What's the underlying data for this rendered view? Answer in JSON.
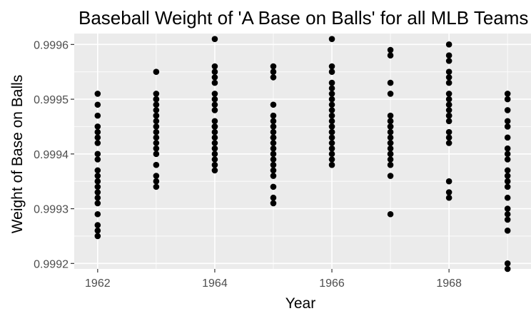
{
  "chart_data": {
    "type": "scatter",
    "title": "Baseball Weight of 'A Base on Balls' for all MLB Teams",
    "xlabel": "Year",
    "ylabel": "Weight of Base on Balls",
    "xlim": [
      1961.6,
      1969.4
    ],
    "ylim": [
      0.99919,
      0.99962
    ],
    "x_ticks": [
      1962,
      1964,
      1966,
      1968
    ],
    "x_tick_labels": [
      "1962",
      "1964",
      "1966",
      "1968"
    ],
    "y_ticks": [
      0.9992,
      0.9993,
      0.9994,
      0.9995,
      0.9996
    ],
    "y_tick_labels": [
      "0.9992",
      "0.9993",
      "0.9994",
      "0.9995",
      "0.9996"
    ],
    "grid": true,
    "legend": "none",
    "panel_color": "#ebebeb",
    "grid_color": "#ffffff",
    "point_color": "#000000",
    "series": [
      {
        "x": [
          1962,
          1962,
          1962,
          1962,
          1962,
          1962,
          1962,
          1962,
          1962,
          1962,
          1962,
          1962,
          1962,
          1962,
          1962,
          1962,
          1962,
          1962,
          1962,
          1962
        ],
        "y": [
          0.99951,
          0.99947,
          0.99945,
          0.99944,
          0.99943,
          0.99942,
          0.9994,
          0.99939,
          0.99937,
          0.99936,
          0.99935,
          0.99934,
          0.99933,
          0.99932,
          0.99931,
          0.99929,
          0.99927,
          0.99925,
          0.99926,
          0.99949
        ]
      },
      {
        "x": [
          1963,
          1963,
          1963,
          1963,
          1963,
          1963,
          1963,
          1963,
          1963,
          1963,
          1963,
          1963,
          1963,
          1963,
          1963,
          1963,
          1963,
          1963,
          1963,
          1963
        ],
        "y": [
          0.99955,
          0.99951,
          0.9995,
          0.99949,
          0.99948,
          0.99947,
          0.99946,
          0.99945,
          0.99944,
          0.99943,
          0.99942,
          0.99941,
          0.9994,
          0.99938,
          0.99936,
          0.99935,
          0.99934,
          0.99949,
          0.9995,
          0.99947
        ]
      },
      {
        "x": [
          1964,
          1964,
          1964,
          1964,
          1964,
          1964,
          1964,
          1964,
          1964,
          1964,
          1964,
          1964,
          1964,
          1964,
          1964,
          1964,
          1964,
          1964,
          1964,
          1964
        ],
        "y": [
          0.99961,
          0.99956,
          0.99955,
          0.99954,
          0.99953,
          0.99951,
          0.9995,
          0.99948,
          0.99946,
          0.99945,
          0.99944,
          0.99943,
          0.99942,
          0.99941,
          0.9994,
          0.99939,
          0.99938,
          0.99937,
          0.99949,
          0.99945
        ]
      },
      {
        "x": [
          1965,
          1965,
          1965,
          1965,
          1965,
          1965,
          1965,
          1965,
          1965,
          1965,
          1965,
          1965,
          1965,
          1965,
          1965,
          1965,
          1965,
          1965,
          1965,
          1965
        ],
        "y": [
          0.99956,
          0.99955,
          0.99954,
          0.99949,
          0.99947,
          0.99945,
          0.99944,
          0.99943,
          0.99942,
          0.99941,
          0.9994,
          0.99939,
          0.99937,
          0.99936,
          0.99934,
          0.99932,
          0.99931,
          0.99946,
          0.99943,
          0.99938
        ]
      },
      {
        "x": [
          1966,
          1966,
          1966,
          1966,
          1966,
          1966,
          1966,
          1966,
          1966,
          1966,
          1966,
          1966,
          1966,
          1966,
          1966,
          1966,
          1966,
          1966,
          1966,
          1966
        ],
        "y": [
          0.99961,
          0.99956,
          0.99955,
          0.99953,
          0.99951,
          0.9995,
          0.99949,
          0.99948,
          0.99947,
          0.99946,
          0.99945,
          0.99944,
          0.99943,
          0.99942,
          0.99941,
          0.9994,
          0.99939,
          0.99938,
          0.99952,
          0.99944
        ]
      },
      {
        "x": [
          1967,
          1967,
          1967,
          1967,
          1967,
          1967,
          1967,
          1967,
          1967,
          1967,
          1967,
          1967,
          1967,
          1967,
          1967,
          1967,
          1967,
          1967,
          1967,
          1967
        ],
        "y": [
          0.99959,
          0.99958,
          0.99953,
          0.99951,
          0.99947,
          0.99946,
          0.99945,
          0.99944,
          0.99943,
          0.99942,
          0.99941,
          0.9994,
          0.99939,
          0.99938,
          0.99936,
          0.99929,
          0.99945,
          0.99942,
          0.99946,
          0.9994
        ]
      },
      {
        "x": [
          1968,
          1968,
          1968,
          1968,
          1968,
          1968,
          1968,
          1968,
          1968,
          1968,
          1968,
          1968,
          1968,
          1968,
          1968,
          1968,
          1968,
          1968,
          1968,
          1968
        ],
        "y": [
          0.9996,
          0.99958,
          0.99957,
          0.99955,
          0.99954,
          0.99953,
          0.99951,
          0.9995,
          0.99949,
          0.99948,
          0.99947,
          0.99946,
          0.99944,
          0.99943,
          0.99942,
          0.99935,
          0.99933,
          0.99932,
          0.99949,
          0.99947
        ]
      },
      {
        "x": [
          1969,
          1969,
          1969,
          1969,
          1969,
          1969,
          1969,
          1969,
          1969,
          1969,
          1969,
          1969,
          1969,
          1969,
          1969,
          1969,
          1969,
          1969,
          1969,
          1969
        ],
        "y": [
          0.99951,
          0.9995,
          0.99948,
          0.99946,
          0.99945,
          0.99943,
          0.99941,
          0.9994,
          0.99939,
          0.99937,
          0.99936,
          0.99935,
          0.99934,
          0.99932,
          0.9993,
          0.99929,
          0.99926,
          0.9992,
          0.99919,
          0.99928
        ]
      }
    ]
  }
}
